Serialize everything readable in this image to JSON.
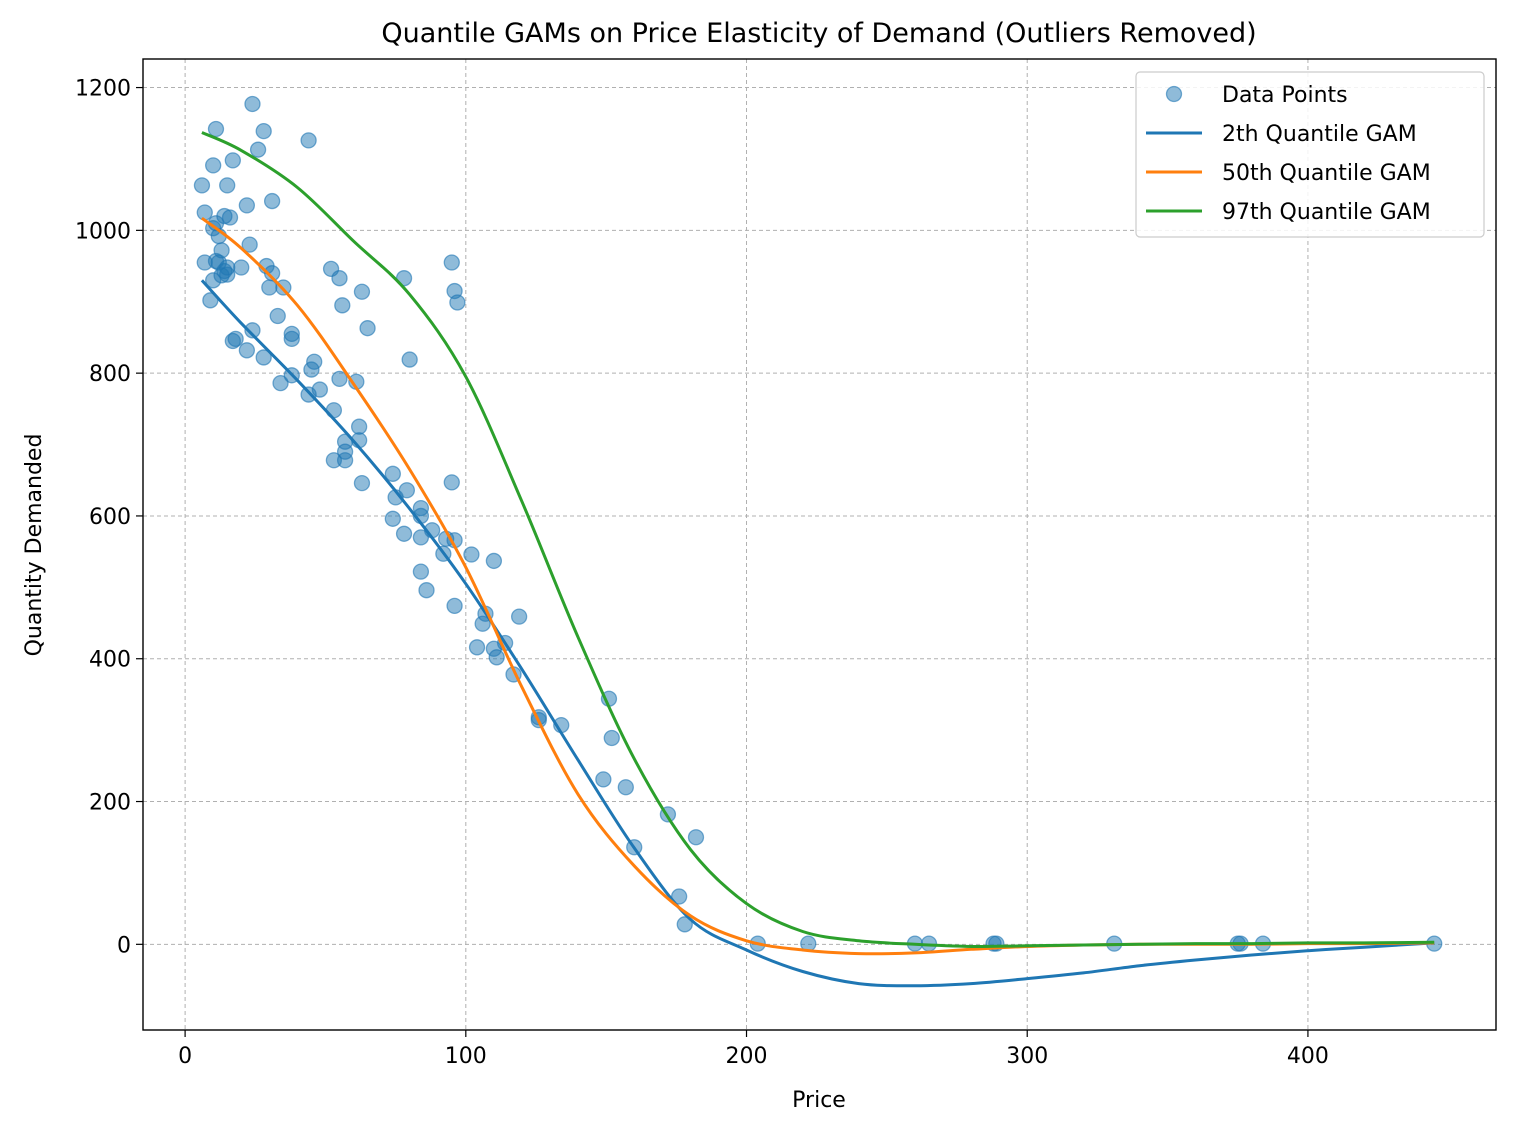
{
  "chart_data": {
    "type": "scatter",
    "title": "Quantile GAMs on Price Elasticity of Demand (Outliers Removed)",
    "xlabel": "Price",
    "ylabel": "Quantity Demanded",
    "xlim": [
      -15,
      467
    ],
    "ylim": [
      -120,
      1240
    ],
    "x_ticks": [
      0,
      100,
      200,
      300,
      400
    ],
    "y_ticks": [
      0,
      200,
      400,
      600,
      800,
      1000,
      1200
    ],
    "grid": true,
    "legend_position": "top-right",
    "colors": {
      "points": "#1f77b4",
      "q2": "#1f77b4",
      "q50": "#ff7f0e",
      "q97": "#2ca02c"
    },
    "legend": [
      {
        "label": "Data Points",
        "kind": "marker",
        "color": "#1f77b4"
      },
      {
        "label": "2th Quantile GAM",
        "kind": "line",
        "color": "#1f77b4"
      },
      {
        "label": "50th Quantile GAM",
        "kind": "line",
        "color": "#ff7f0e"
      },
      {
        "label": "97th Quantile GAM",
        "kind": "line",
        "color": "#2ca02c"
      }
    ],
    "points": [
      [
        6,
        1063
      ],
      [
        7,
        1025
      ],
      [
        7,
        955
      ],
      [
        9,
        902
      ],
      [
        10,
        1003
      ],
      [
        10,
        930
      ],
      [
        10,
        1091
      ],
      [
        11,
        1010
      ],
      [
        11,
        957
      ],
      [
        11,
        1142
      ],
      [
        12,
        992
      ],
      [
        12,
        955
      ],
      [
        13,
        972
      ],
      [
        13,
        937
      ],
      [
        14,
        1020
      ],
      [
        14,
        943
      ],
      [
        15,
        1063
      ],
      [
        15,
        938
      ],
      [
        15,
        948
      ],
      [
        16,
        1018
      ],
      [
        17,
        1098
      ],
      [
        17,
        845
      ],
      [
        18,
        848
      ],
      [
        20,
        948
      ],
      [
        22,
        1035
      ],
      [
        22,
        832
      ],
      [
        23,
        980
      ],
      [
        24,
        860
      ],
      [
        24,
        1177
      ],
      [
        26,
        1113
      ],
      [
        28,
        822
      ],
      [
        28,
        1139
      ],
      [
        29,
        950
      ],
      [
        30,
        920
      ],
      [
        31,
        940
      ],
      [
        31,
        1041
      ],
      [
        33,
        880
      ],
      [
        34,
        786
      ],
      [
        35,
        920
      ],
      [
        38,
        848
      ],
      [
        38,
        855
      ],
      [
        38,
        797
      ],
      [
        44,
        770
      ],
      [
        44,
        1126
      ],
      [
        45,
        805
      ],
      [
        46,
        816
      ],
      [
        48,
        777
      ],
      [
        52,
        946
      ],
      [
        53,
        748
      ],
      [
        53,
        678
      ],
      [
        55,
        792
      ],
      [
        55,
        933
      ],
      [
        56,
        895
      ],
      [
        57,
        678
      ],
      [
        57,
        704
      ],
      [
        57,
        690
      ],
      [
        61,
        788
      ],
      [
        62,
        725
      ],
      [
        62,
        706
      ],
      [
        63,
        914
      ],
      [
        63,
        646
      ],
      [
        65,
        863
      ],
      [
        74,
        659
      ],
      [
        74,
        596
      ],
      [
        75,
        626
      ],
      [
        78,
        933
      ],
      [
        78,
        575
      ],
      [
        79,
        636
      ],
      [
        80,
        819
      ],
      [
        84,
        611
      ],
      [
        84,
        600
      ],
      [
        84,
        570
      ],
      [
        84,
        522
      ],
      [
        86,
        496
      ],
      [
        88,
        580
      ],
      [
        92,
        547
      ],
      [
        93,
        568
      ],
      [
        95,
        647
      ],
      [
        95,
        955
      ],
      [
        96,
        915
      ],
      [
        96,
        566
      ],
      [
        96,
        474
      ],
      [
        97,
        899
      ],
      [
        102,
        546
      ],
      [
        104,
        416
      ],
      [
        106,
        449
      ],
      [
        107,
        463
      ],
      [
        110,
        537
      ],
      [
        110,
        414
      ],
      [
        111,
        402
      ],
      [
        114,
        422
      ],
      [
        117,
        378
      ],
      [
        119,
        459
      ],
      [
        126,
        318
      ],
      [
        126,
        314
      ],
      [
        134,
        307
      ],
      [
        149,
        231
      ],
      [
        151,
        344
      ],
      [
        152,
        289
      ],
      [
        157,
        220
      ],
      [
        160,
        136
      ],
      [
        172,
        182
      ],
      [
        176,
        67
      ],
      [
        178,
        28
      ],
      [
        182,
        150
      ],
      [
        204,
        1
      ],
      [
        222,
        1
      ],
      [
        260,
        1
      ],
      [
        265,
        1
      ],
      [
        288,
        1
      ],
      [
        289,
        1
      ],
      [
        331,
        1
      ],
      [
        375,
        1
      ],
      [
        376,
        1
      ],
      [
        384,
        1
      ],
      [
        445,
        1
      ]
    ],
    "series": [
      {
        "name": "2th Quantile GAM",
        "x": [
          6,
          20,
          40,
          60,
          80,
          100,
          120,
          140,
          160,
          180,
          200,
          220,
          240,
          260,
          280,
          300,
          320,
          340,
          360,
          380,
          400,
          420,
          445
        ],
        "y": [
          930,
          870,
          790,
          705,
          610,
          505,
          385,
          258,
          135,
          35,
          -8,
          -38,
          -55,
          -58,
          -55,
          -48,
          -40,
          -30,
          -22,
          -15,
          -9,
          -4,
          2
        ]
      },
      {
        "name": "50th Quantile GAM",
        "x": [
          6,
          20,
          40,
          60,
          80,
          100,
          120,
          140,
          160,
          180,
          200,
          220,
          240,
          260,
          280,
          300,
          320,
          340,
          360,
          380,
          400,
          420,
          445
        ],
        "y": [
          1017,
          975,
          895,
          785,
          665,
          528,
          360,
          210,
          110,
          40,
          5,
          -8,
          -13,
          -12,
          -7,
          -3,
          -1,
          0,
          0,
          0,
          1,
          1,
          2
        ]
      },
      {
        "name": "97th Quantile GAM",
        "x": [
          6,
          20,
          40,
          60,
          80,
          100,
          120,
          140,
          160,
          180,
          200,
          220,
          240,
          260,
          280,
          300,
          320,
          340,
          360,
          380,
          400,
          420,
          445
        ],
        "y": [
          1137,
          1112,
          1060,
          985,
          910,
          795,
          620,
          430,
          260,
          133,
          57,
          18,
          5,
          0,
          -3,
          -2,
          -1,
          0,
          1,
          1,
          2,
          2,
          3
        ]
      }
    ]
  }
}
